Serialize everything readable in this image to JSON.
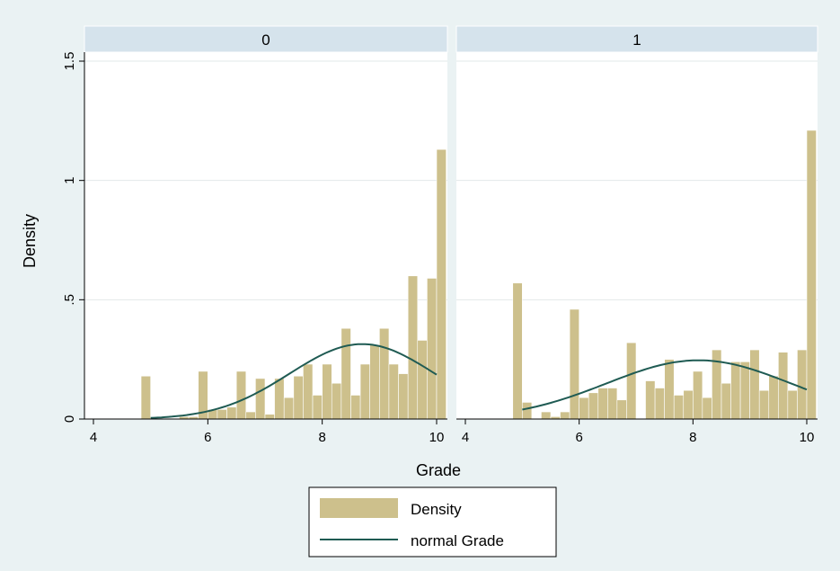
{
  "chart_data": {
    "type": "bar",
    "xlabel": "Grade",
    "ylabel": "Density",
    "xlim": [
      4,
      10
    ],
    "ylim": [
      0,
      1.5
    ],
    "xticks": [
      4,
      6,
      8,
      10
    ],
    "yticks": [
      {
        "value": 0,
        "label": "0"
      },
      {
        "value": 0.5,
        "label": ".5"
      },
      {
        "value": 1,
        "label": "1"
      },
      {
        "value": 1.5,
        "label": "1.5"
      }
    ],
    "grid": true,
    "legend_position": "bottom",
    "legend": [
      {
        "label": "Density",
        "kind": "bar"
      },
      {
        "label": "normal Grade",
        "kind": "line"
      }
    ],
    "colors": {
      "bars": "#cdc08c",
      "curve": "#1f5b53",
      "strip": "#d5e3ec",
      "background": "#eaf2f3"
    },
    "panels": [
      {
        "label": "0",
        "bin_width": 0.167,
        "bins": [
          {
            "x": 5.0,
            "y": 0.18
          },
          {
            "x": 5.167,
            "y": 0
          },
          {
            "x": 5.333,
            "y": 0
          },
          {
            "x": 5.5,
            "y": 0
          },
          {
            "x": 5.667,
            "y": 0.01
          },
          {
            "x": 5.833,
            "y": 0.01
          },
          {
            "x": 6.0,
            "y": 0.2
          },
          {
            "x": 6.167,
            "y": 0.04
          },
          {
            "x": 6.333,
            "y": 0.04
          },
          {
            "x": 6.5,
            "y": 0.05
          },
          {
            "x": 6.667,
            "y": 0.2
          },
          {
            "x": 6.833,
            "y": 0.03
          },
          {
            "x": 7.0,
            "y": 0.17
          },
          {
            "x": 7.167,
            "y": 0.02
          },
          {
            "x": 7.333,
            "y": 0.17
          },
          {
            "x": 7.5,
            "y": 0.09
          },
          {
            "x": 7.667,
            "y": 0.18
          },
          {
            "x": 7.833,
            "y": 0.23
          },
          {
            "x": 8.0,
            "y": 0.1
          },
          {
            "x": 8.167,
            "y": 0.23
          },
          {
            "x": 8.333,
            "y": 0.15
          },
          {
            "x": 8.5,
            "y": 0.38
          },
          {
            "x": 8.667,
            "y": 0.1
          },
          {
            "x": 8.833,
            "y": 0.23
          },
          {
            "x": 9.0,
            "y": 0.31
          },
          {
            "x": 9.167,
            "y": 0.38
          },
          {
            "x": 9.333,
            "y": 0.23
          },
          {
            "x": 9.5,
            "y": 0.19
          },
          {
            "x": 9.667,
            "y": 0.6
          },
          {
            "x": 9.833,
            "y": 0.33
          },
          {
            "x": 10.0,
            "y": 0.59
          },
          {
            "x": 10.167,
            "y": 1.13
          }
        ],
        "normal": {
          "mean": 8.7,
          "sd": 1.27,
          "x_range": [
            5.0,
            10.0
          ]
        }
      },
      {
        "label": "1",
        "bin_width": 0.167,
        "bins": [
          {
            "x": 5.0,
            "y": 0.57
          },
          {
            "x": 5.167,
            "y": 0.07
          },
          {
            "x": 5.333,
            "y": 0
          },
          {
            "x": 5.5,
            "y": 0.03
          },
          {
            "x": 5.667,
            "y": 0.01
          },
          {
            "x": 5.833,
            "y": 0.03
          },
          {
            "x": 6.0,
            "y": 0.46
          },
          {
            "x": 6.167,
            "y": 0.09
          },
          {
            "x": 6.333,
            "y": 0.11
          },
          {
            "x": 6.5,
            "y": 0.13
          },
          {
            "x": 6.667,
            "y": 0.13
          },
          {
            "x": 6.833,
            "y": 0.08
          },
          {
            "x": 7.0,
            "y": 0.32
          },
          {
            "x": 7.167,
            "y": 0
          },
          {
            "x": 7.333,
            "y": 0.16
          },
          {
            "x": 7.5,
            "y": 0.13
          },
          {
            "x": 7.667,
            "y": 0.25
          },
          {
            "x": 7.833,
            "y": 0.1
          },
          {
            "x": 8.0,
            "y": 0.12
          },
          {
            "x": 8.167,
            "y": 0.2
          },
          {
            "x": 8.333,
            "y": 0.09
          },
          {
            "x": 8.5,
            "y": 0.29
          },
          {
            "x": 8.667,
            "y": 0.15
          },
          {
            "x": 8.833,
            "y": 0.24
          },
          {
            "x": 9.0,
            "y": 0.24
          },
          {
            "x": 9.167,
            "y": 0.29
          },
          {
            "x": 9.333,
            "y": 0.12
          },
          {
            "x": 9.5,
            "y": 0.18
          },
          {
            "x": 9.667,
            "y": 0.28
          },
          {
            "x": 9.833,
            "y": 0.12
          },
          {
            "x": 10.0,
            "y": 0.29
          },
          {
            "x": 10.167,
            "y": 1.21
          }
        ],
        "normal": {
          "mean": 8.1,
          "sd": 1.62,
          "x_range": [
            5.0,
            10.0
          ]
        }
      }
    ]
  }
}
